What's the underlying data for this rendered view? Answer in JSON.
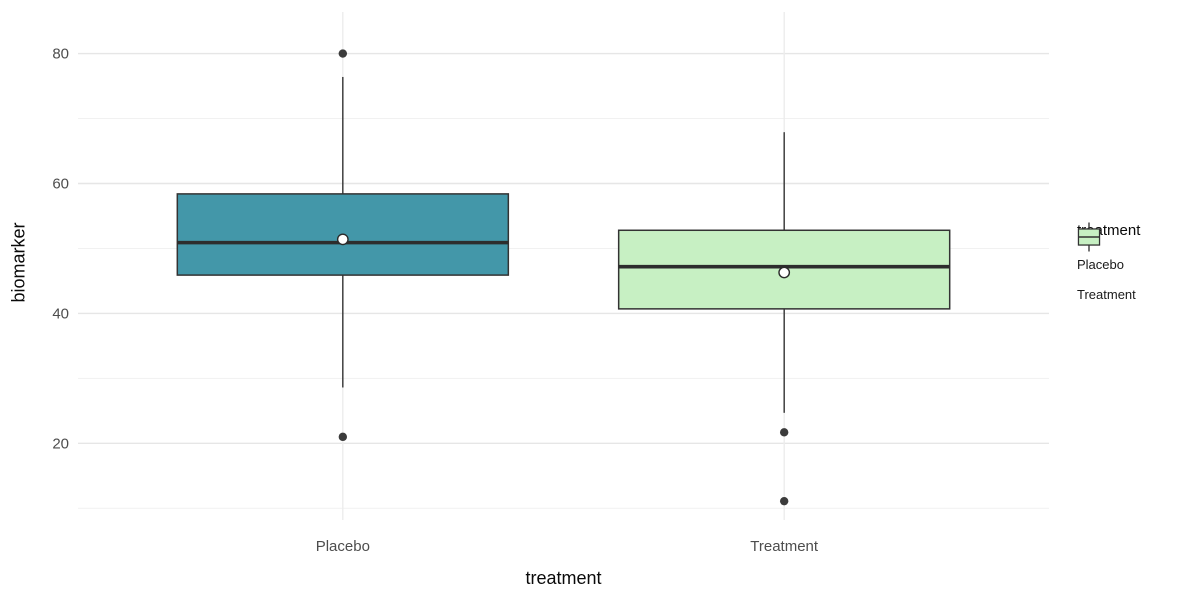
{
  "figure": {
    "background": "#ffffff"
  },
  "chart_data": {
    "type": "boxplot",
    "title": "",
    "xlabel": "treatment",
    "ylabel": "biomarker",
    "categories": [
      "Placebo",
      "Treatment"
    ],
    "y_axis": {
      "ticks_major": [
        20,
        40,
        60,
        80
      ],
      "ticks_minor": [
        10,
        30,
        50,
        70
      ],
      "range": [
        8.2,
        86.4
      ]
    },
    "grid": "on",
    "legend": {
      "title": "treatment",
      "position": "right",
      "entries": [
        {
          "label": "Placebo",
          "fill": "#4397a9"
        },
        {
          "label": "Treatment",
          "fill": "#c7f0c3"
        }
      ]
    },
    "series": [
      {
        "name": "Placebo",
        "fill": "#4397a9",
        "stats": {
          "whisker_low": 28.6,
          "q1": 45.9,
          "median": 50.9,
          "q3": 58.4,
          "whisker_high": 76.4
        },
        "mean": 51.4,
        "outliers": [
          80,
          21
        ]
      },
      {
        "name": "Treatment",
        "fill": "#c7f0c3",
        "stats": {
          "whisker_low": 24.7,
          "q1": 40.7,
          "median": 47.2,
          "q3": 52.8,
          "whisker_high": 67.9
        },
        "mean": 46.3,
        "outliers": [
          21.7,
          11.1
        ]
      }
    ],
    "style": {
      "grid_major_color": "#e6e6e6",
      "grid_minor_color": "#f1f1f1",
      "grid_x_color": "#ececec",
      "box_stroke": "#333333",
      "median_stroke": "#2d2d2d",
      "outlier_fill": "#3b3b3b",
      "mean_fill": "#ffffff",
      "mean_stroke": "#2b2b2b",
      "axis_text_color": "#4d4d4d"
    }
  }
}
